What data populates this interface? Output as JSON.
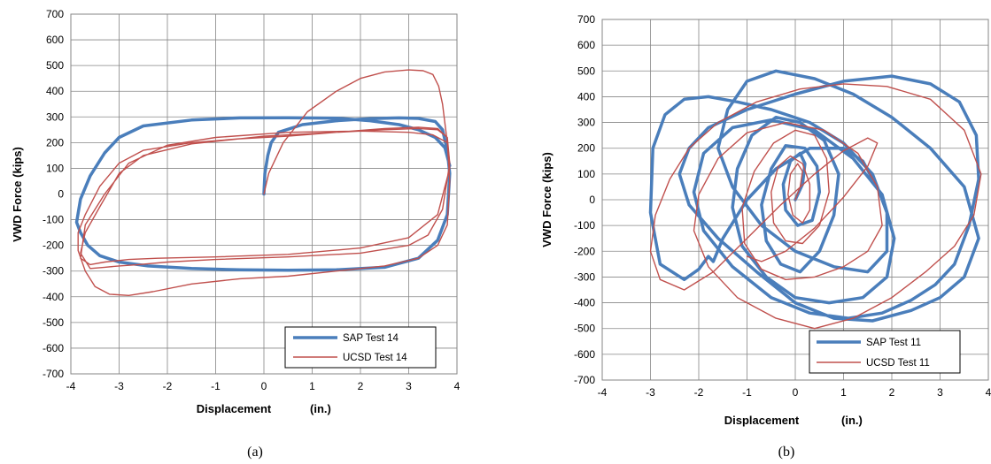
{
  "chart_data": [
    {
      "type": "line",
      "panel": "a",
      "caption": "(a)",
      "xlabel": "Displacement",
      "xunit": "(in.)",
      "ylabel": "VWD Force (kips)",
      "xlim": [
        -4,
        4
      ],
      "ylim": [
        -700,
        700
      ],
      "xticks": [
        -4,
        -3,
        -2,
        -1,
        0,
        1,
        2,
        3,
        4
      ],
      "yticks": [
        -700,
        -600,
        -500,
        -400,
        -300,
        -200,
        -100,
        0,
        100,
        200,
        300,
        400,
        500,
        600,
        700
      ],
      "grid": true,
      "legend_position": "bottom-right",
      "series": [
        {
          "name": "SAP Test 14",
          "color": "#4a7ebb",
          "x": [
            0,
            0.02,
            0.08,
            0.15,
            0.3,
            0.8,
            1.5,
            2.2,
            2.8,
            3.2,
            3.55,
            3.7,
            3.8,
            3.85,
            3.8,
            3.6,
            3.2,
            2.5,
            1.5,
            0.5,
            -0.5,
            -1.5,
            -2.4,
            -3.0,
            -3.4,
            -3.65,
            -3.8,
            -3.88,
            -3.8,
            -3.6,
            -3.3,
            -3.0,
            -2.5,
            -1.5,
            -0.5,
            0.5,
            1.5,
            2.2,
            2.8,
            3.2,
            3.55,
            3.75,
            3.85
          ],
          "y": [
            0,
            80,
            150,
            200,
            240,
            270,
            285,
            293,
            296,
            294,
            282,
            250,
            170,
            80,
            -80,
            -180,
            -250,
            -285,
            -295,
            -297,
            -295,
            -290,
            -280,
            -265,
            -240,
            -200,
            -150,
            -110,
            -20,
            70,
            160,
            220,
            265,
            288,
            296,
            297,
            295,
            285,
            270,
            250,
            220,
            180,
            110
          ]
        },
        {
          "name": "UCSD Test 14",
          "color": "#c0504d",
          "x": [
            0,
            0.1,
            0.4,
            0.9,
            1.5,
            2.0,
            2.5,
            3.0,
            3.3,
            3.5,
            3.62,
            3.7,
            3.8,
            3.85,
            3.8,
            3.6,
            3.2,
            2.5,
            1.5,
            0.5,
            -0.5,
            -1.5,
            -2.3,
            -2.8,
            -3.2,
            -3.5,
            -3.7,
            -3.85,
            -3.85,
            -3.7,
            -3.4,
            -3.0,
            -2.5,
            -1.5,
            -0.5,
            0.5,
            1.5,
            2.5,
            3.2,
            3.6,
            3.8,
            3.85,
            3.7,
            3.4,
            3.0,
            2.0,
            0.5,
            -1.0,
            -2.0,
            -2.6,
            -3.0,
            -3.3,
            -3.6,
            -3.8,
            -3.7,
            -3.4,
            -3.0,
            -2.5,
            -1.5,
            0,
            1.5,
            2.5,
            3.2,
            3.6,
            3.8,
            3.85,
            3.6,
            3.0,
            2.0,
            0.5,
            -1.0,
            -2.2,
            -2.8,
            -3.3,
            -3.6,
            -3.8,
            -3.7,
            -3.3,
            -2.8,
            -2.0,
            -1.0,
            0.5,
            2.0,
            3.0,
            3.5,
            3.8
          ],
          "y": [
            0,
            80,
            200,
            320,
            400,
            450,
            475,
            483,
            480,
            465,
            420,
            350,
            200,
            50,
            -120,
            -200,
            -250,
            -280,
            -300,
            -320,
            -330,
            -350,
            -380,
            -395,
            -390,
            -360,
            -300,
            -220,
            -150,
            -80,
            30,
            120,
            170,
            200,
            215,
            225,
            240,
            255,
            260,
            255,
            220,
            120,
            -60,
            -160,
            -200,
            -230,
            -245,
            -255,
            -265,
            -275,
            -280,
            -285,
            -290,
            -230,
            -150,
            -50,
            80,
            150,
            195,
            225,
            240,
            250,
            255,
            250,
            220,
            100,
            -80,
            -170,
            -210,
            -235,
            -245,
            -250,
            -255,
            -265,
            -275,
            -250,
            -120,
            0,
            120,
            190,
            220,
            240,
            245,
            240,
            230,
            200
          ]
        }
      ]
    },
    {
      "type": "line",
      "panel": "b",
      "caption": "(b)",
      "xlabel": "Displacement",
      "xunit": "(in.)",
      "ylabel": "VWD Force (kips)",
      "xlim": [
        -4,
        4
      ],
      "ylim": [
        -700,
        700
      ],
      "xticks": [
        -4,
        -3,
        -2,
        -1,
        0,
        1,
        2,
        3,
        4
      ],
      "yticks": [
        -700,
        -600,
        -500,
        -400,
        -300,
        -200,
        -100,
        0,
        100,
        200,
        300,
        400,
        500,
        600,
        700
      ],
      "grid": true,
      "legend_position": "bottom-right",
      "series": [
        {
          "name": "SAP Test 11",
          "color": "#4a7ebb",
          "x": [
            0,
            0.15,
            0.2,
            0.1,
            -0.1,
            -0.25,
            -0.2,
            0.05,
            0.35,
            0.5,
            0.45,
            0.2,
            -0.2,
            -0.5,
            -0.7,
            -0.6,
            -0.3,
            0.1,
            0.5,
            0.8,
            0.9,
            0.6,
            0.1,
            -0.4,
            -0.9,
            -1.2,
            -1.3,
            -1.1,
            -0.6,
            0,
            0.7,
            1.4,
            1.9,
            2.05,
            1.8,
            1.2,
            0.4,
            -0.5,
            -1.3,
            -1.9,
            -2.1,
            -1.9,
            -1.3,
            -0.5,
            0.3,
            1.1,
            1.8,
            2.4,
            2.9,
            3.3,
            3.6,
            3.8,
            3.75,
            3.4,
            2.8,
            2.0,
            1.0,
            0,
            -1.0,
            -1.8,
            -2.2,
            -2.4,
            -2.2,
            -1.6,
            -0.8,
            0,
            0.8,
            1.6,
            2.4,
            3.0,
            3.5,
            3.8,
            3.5,
            2.8,
            2.0,
            1.2,
            0.4,
            -0.4,
            -1.0,
            -1.4,
            -1.6,
            -1.3,
            -0.7,
            0,
            0.8,
            1.5,
            1.9,
            1.9,
            1.6,
            1.0,
            0.3,
            -0.5,
            -1.2,
            -1.8,
            -2.3,
            -2.7,
            -2.95,
            -3.0,
            -2.8,
            -2.3,
            -2.0,
            -1.8,
            -1.7,
            -1.5,
            -1.0,
            -0.4,
            0.3,
            1.0,
            1.4,
            1.6
          ],
          "y": [
            0,
            60,
            140,
            180,
            150,
            60,
            -40,
            -100,
            -80,
            30,
            130,
            200,
            210,
            120,
            -20,
            -160,
            -250,
            -280,
            -200,
            -60,
            100,
            230,
            300,
            320,
            250,
            120,
            -30,
            -180,
            -300,
            -380,
            -400,
            -380,
            -300,
            -150,
            20,
            160,
            270,
            310,
            280,
            180,
            30,
            -120,
            -260,
            -380,
            -440,
            -460,
            -440,
            -390,
            -330,
            -250,
            -100,
            80,
            250,
            380,
            450,
            480,
            460,
            410,
            350,
            280,
            200,
            100,
            -20,
            -150,
            -280,
            -400,
            -460,
            -470,
            -430,
            -380,
            -300,
            -150,
            50,
            200,
            320,
            410,
            470,
            500,
            460,
            350,
            200,
            50,
            -100,
            -200,
            -260,
            -280,
            -200,
            -50,
            100,
            220,
            300,
            350,
            380,
            400,
            390,
            330,
            200,
            -50,
            -250,
            -310,
            -270,
            -220,
            -240,
            -150,
            0,
            120,
            200,
            200,
            150,
            80
          ]
        },
        {
          "name": "UCSD Test 11",
          "color": "#c0504d",
          "x": [
            0,
            0.1,
            0.15,
            0.05,
            -0.1,
            -0.15,
            -0.05,
            0.15,
            0.3,
            0.3,
            0.15,
            -0.1,
            -0.35,
            -0.5,
            -0.45,
            -0.2,
            0.15,
            0.5,
            0.7,
            0.65,
            0.4,
            0,
            -0.45,
            -0.85,
            -1.1,
            -1.05,
            -0.7,
            -0.2,
            0.4,
            1.0,
            1.5,
            1.8,
            1.7,
            1.3,
            0.6,
            -0.2,
            -1.0,
            -1.6,
            -2.0,
            -2.1,
            -1.8,
            -1.2,
            -0.4,
            0.4,
            1.2,
            2.0,
            2.7,
            3.3,
            3.7,
            3.85,
            3.5,
            2.8,
            1.9,
            1.0,
            0.1,
            -0.8,
            -1.6,
            -2.2,
            -2.6,
            -2.9,
            -3.0,
            -2.8,
            -2.3,
            -1.7,
            -1.0,
            -0.3,
            0.4,
            1.0,
            1.5,
            1.7,
            1.5,
            1.0,
            0.4,
            -0.2,
            -0.7,
            -1.0
          ],
          "y": [
            0,
            50,
            110,
            140,
            100,
            20,
            -60,
            -90,
            -40,
            60,
            140,
            170,
            130,
            30,
            -90,
            -160,
            -170,
            -100,
            30,
            160,
            250,
            270,
            220,
            110,
            -30,
            -170,
            -270,
            -310,
            -300,
            -260,
            -200,
            -100,
            50,
            180,
            270,
            300,
            260,
            160,
            20,
            -120,
            -260,
            -380,
            -460,
            -500,
            -460,
            -380,
            -280,
            -180,
            -60,
            100,
            270,
            390,
            440,
            450,
            430,
            380,
            300,
            200,
            80,
            -60,
            -200,
            -310,
            -350,
            -280,
            -150,
            -20,
            100,
            190,
            240,
            220,
            130,
            10,
            -110,
            -200,
            -240,
            -220
          ]
        }
      ]
    }
  ]
}
